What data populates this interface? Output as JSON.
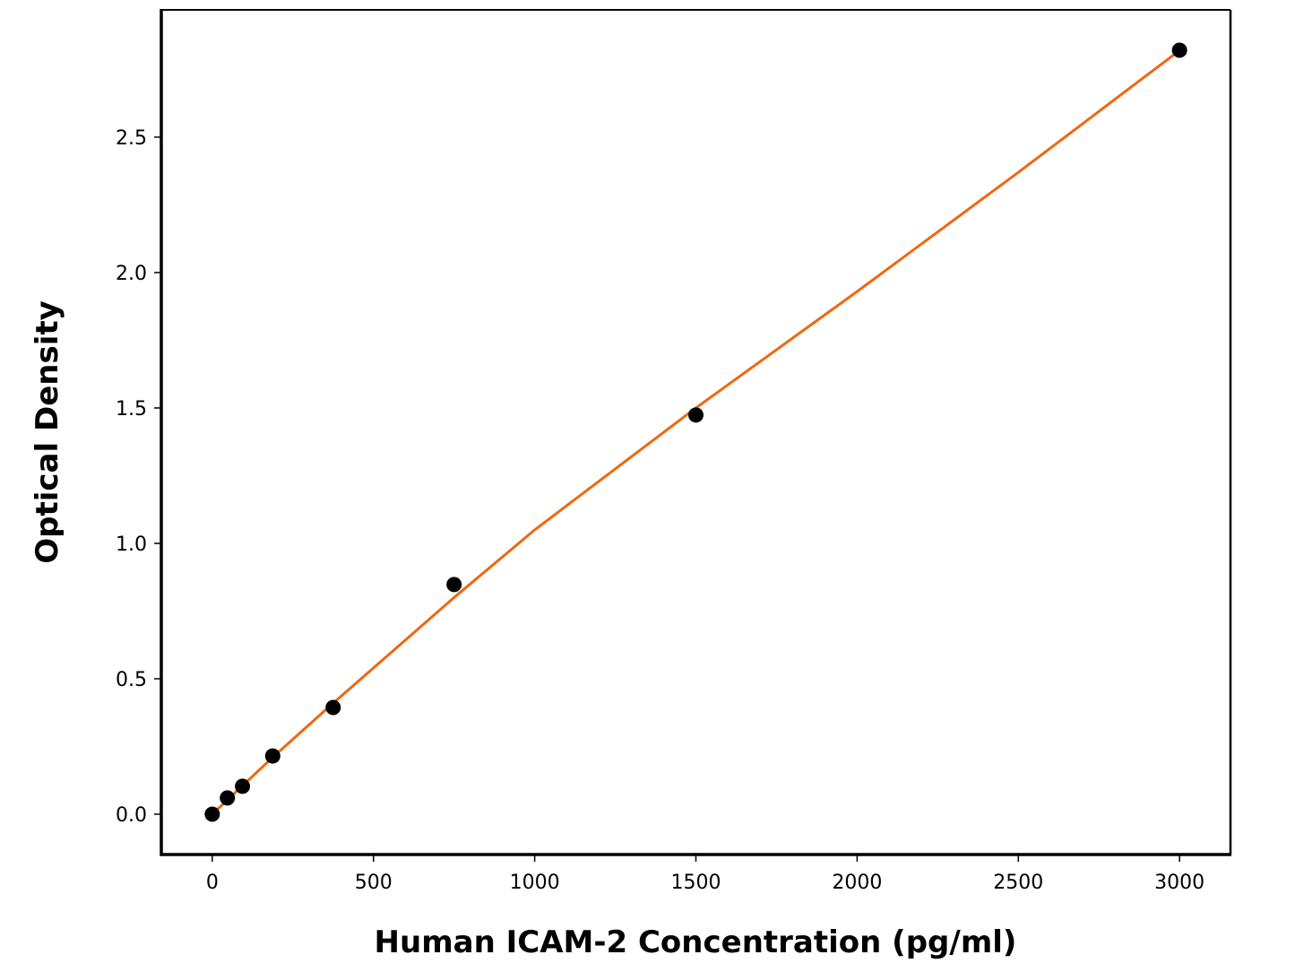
{
  "chart_data": {
    "type": "scatter",
    "xlabel": "Human ICAM-2 Concentration (pg/ml)",
    "ylabel": "Optical Density",
    "xlim": [
      -158,
      3158
    ],
    "ylim": [
      -0.149,
      2.97
    ],
    "xticks": [
      0,
      500,
      1000,
      1500,
      2000,
      2500,
      3000
    ],
    "yticks": [
      {
        "value": 0,
        "label": "0.0"
      },
      0.5,
      {
        "value": 1,
        "label": "1.0"
      },
      1.5,
      {
        "value": 2,
        "label": "2.0"
      },
      2.5
    ],
    "grid": false,
    "series": [
      {
        "style": "line",
        "color": "#f0670f",
        "x": [
          0,
          187.5,
          375,
          750,
          1000,
          1500,
          2000,
          2500,
          3000
        ],
        "values": [
          0,
          0.21,
          0.41,
          0.8,
          1.05,
          1.5,
          1.93,
          2.37,
          2.82
        ]
      },
      {
        "style": "points",
        "color": "#000000",
        "x": [
          0,
          46.875,
          93.75,
          187.5,
          375,
          750,
          1500,
          3000
        ],
        "values": [
          0,
          0.06,
          0.103,
          0.215,
          0.394,
          0.848,
          1.474,
          2.821
        ]
      }
    ]
  }
}
